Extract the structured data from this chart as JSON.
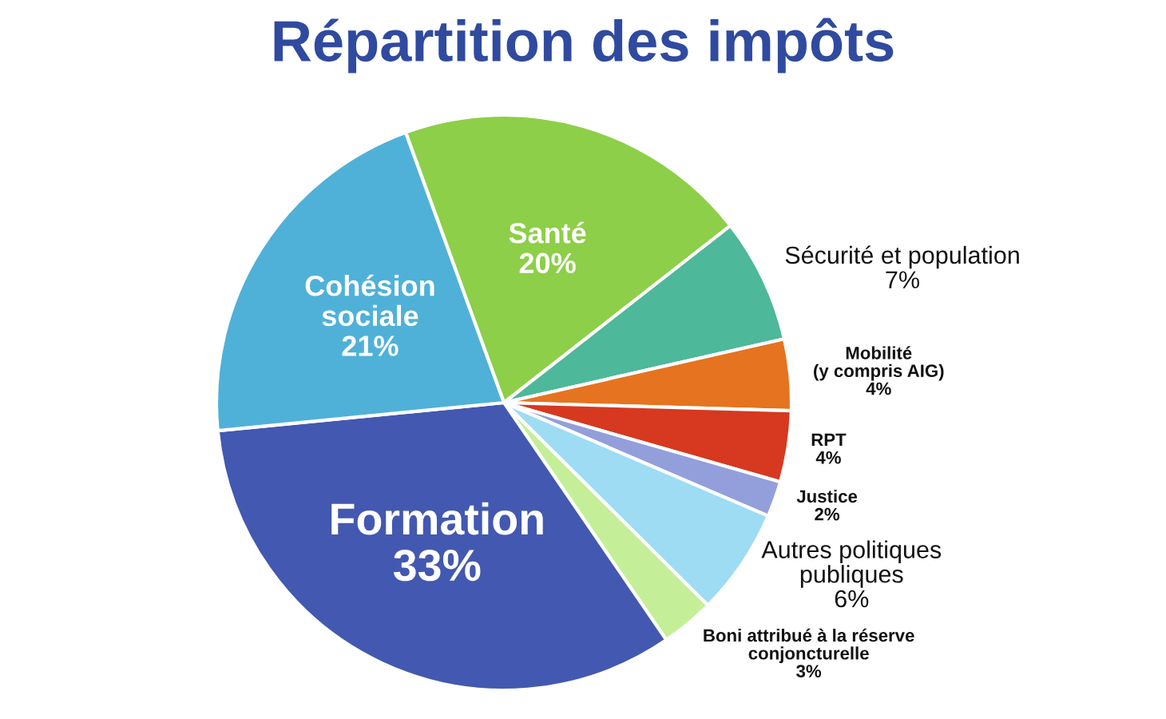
{
  "chart_data": {
    "type": "pie",
    "title": "Répartition des impôts",
    "categories": [
      "Santé",
      "Sécurité et population",
      "Mobilité\n(y compris AIG)",
      "RPT",
      "Justice",
      "Autres politiques\npubliques",
      "Boni attribué à la réserve\nconjoncturelle",
      "Formation",
      "Cohésion\nsociale"
    ],
    "values": [
      20,
      7,
      4,
      4,
      2,
      6,
      3,
      33,
      21
    ],
    "value_labels": [
      "20%",
      "7%",
      "4%",
      "4%",
      "2%",
      "6%",
      "3%",
      "33%",
      "21%"
    ],
    "colors": [
      "#8dcf48",
      "#4db89a",
      "#e6731f",
      "#d6391f",
      "#939fdb",
      "#9edcf4",
      "#c4ef98",
      "#4358b0",
      "#4fb1d8"
    ],
    "legend": false
  }
}
